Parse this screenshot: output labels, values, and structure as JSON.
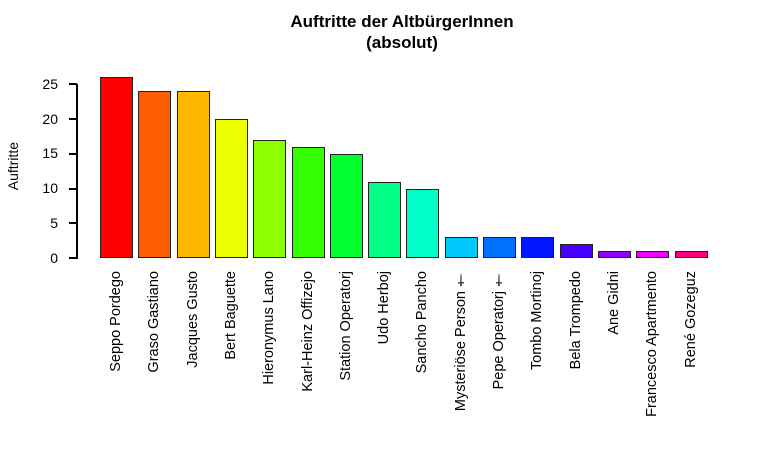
{
  "chart_data": {
    "type": "bar",
    "title": "Auftritte der AltbürgerInnen",
    "subtitle": "(absolut)",
    "ylabel": "Auftritte",
    "xlabel": "",
    "ylim": [
      0,
      26
    ],
    "yticks": [
      0,
      5,
      10,
      15,
      20,
      25
    ],
    "grid": false,
    "legend": false,
    "categories": [
      "Seppo Pordego",
      "Graso Gastiano",
      "Jacques Gusto",
      "Bert Baguette",
      "Hieronymus Lano",
      "Karl-Heinz Offizejo",
      "Station Operatorj",
      "Udo Herboj",
      "Sancho Pancho",
      "Mysteriöse Person †",
      "Pepe Operatorj †",
      "Tombo Mortinoj",
      "Bela Trompedo",
      "Ane Gidni",
      "Francesco Apartmento",
      "René Gozeguz"
    ],
    "values": [
      26,
      24,
      24,
      20,
      17,
      16,
      15,
      11,
      10,
      3,
      3,
      3,
      2,
      1,
      1,
      1
    ],
    "bar_colors": [
      "#FF0000",
      "#FF5C00",
      "#FFB800",
      "#EBFF00",
      "#8CFF00",
      "#33FF00",
      "#00FF2E",
      "#00FF85",
      "#00FFC8",
      "#00C8FF",
      "#0070FF",
      "#0016FF",
      "#4600FF",
      "#9400FF",
      "#F000FF",
      "#FF0080"
    ],
    "bar_border_color": "#222222",
    "axis_color": "#000000",
    "text_color": "#000000",
    "background": "#FFFFFF"
  }
}
